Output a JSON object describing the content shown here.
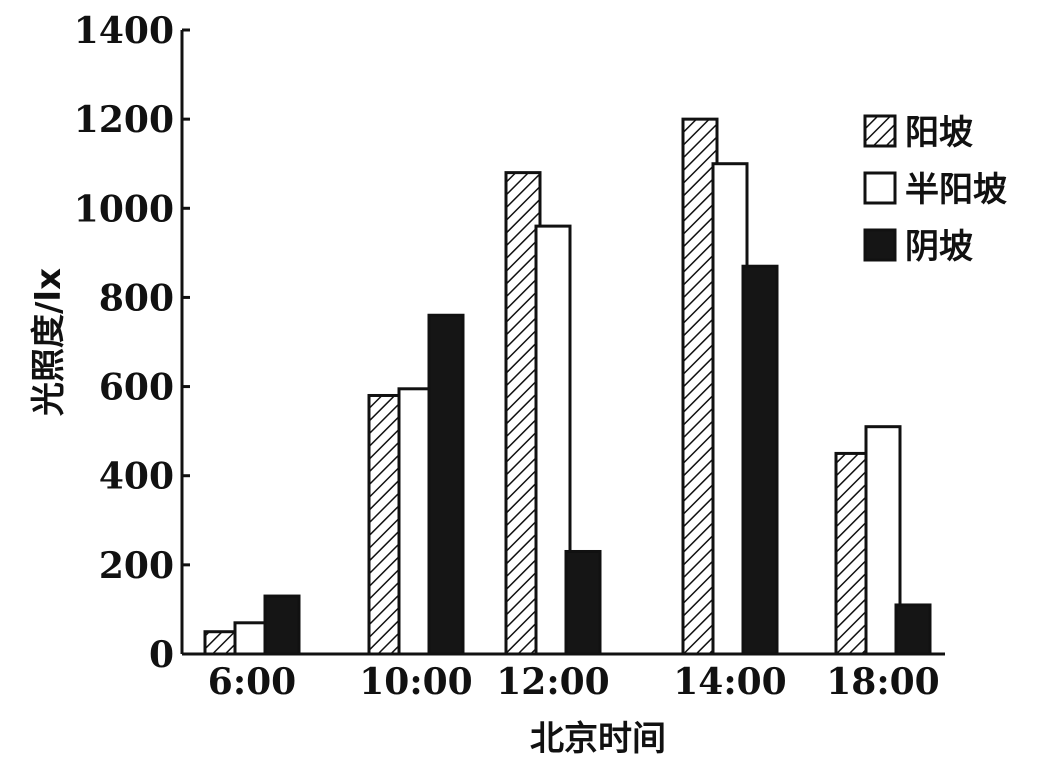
{
  "chart_data": {
    "type": "bar",
    "categories": [
      "6:00",
      "10:00",
      "12:00",
      "14:00",
      "18:00"
    ],
    "series": [
      {
        "name": "阳坡",
        "values": [
          50,
          580,
          1080,
          1200,
          450
        ],
        "fill": "hatch"
      },
      {
        "name": "半阳坡",
        "values": [
          70,
          595,
          960,
          1100,
          510
        ],
        "fill": "white"
      },
      {
        "name": "阴坡",
        "values": [
          130,
          760,
          230,
          870,
          110
        ],
        "fill": "black"
      }
    ],
    "ylabel": "光照度/lx",
    "xlabel": "北京时间",
    "ylim": [
      0,
      1400
    ],
    "yticks": [
      0,
      200,
      400,
      600,
      800,
      1000,
      1200,
      1400
    ],
    "grid": false,
    "legend_position": "top-right"
  },
  "colors": {
    "ink": "#111111",
    "paper": "#ffffff"
  }
}
